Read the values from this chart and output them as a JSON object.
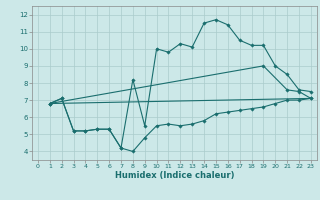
{
  "title": "",
  "xlabel": "Humidex (Indice chaleur)",
  "background_color": "#cce8e8",
  "grid_color": "#aacccc",
  "line_color": "#1a6e6e",
  "xlim": [
    -0.5,
    23.5
  ],
  "ylim": [
    3.5,
    12.5
  ],
  "xticks": [
    0,
    1,
    2,
    3,
    4,
    5,
    6,
    7,
    8,
    9,
    10,
    11,
    12,
    13,
    14,
    15,
    16,
    17,
    18,
    19,
    20,
    21,
    22,
    23
  ],
  "yticks": [
    4,
    5,
    6,
    7,
    8,
    9,
    10,
    11,
    12
  ],
  "line1_x": [
    1,
    2,
    3,
    4,
    5,
    6,
    7,
    8,
    9,
    10,
    11,
    12,
    13,
    14,
    15,
    16,
    17,
    18,
    19,
    20,
    21,
    22,
    23
  ],
  "line1_y": [
    6.8,
    7.1,
    5.2,
    5.2,
    5.3,
    5.3,
    4.2,
    4.0,
    4.8,
    5.5,
    5.6,
    5.5,
    5.6,
    5.8,
    6.2,
    6.3,
    6.4,
    6.5,
    6.6,
    6.8,
    7.0,
    7.0,
    7.1
  ],
  "line2_x": [
    1,
    2,
    3,
    4,
    5,
    6,
    7,
    8,
    9,
    10,
    11,
    12,
    13,
    14,
    15,
    16,
    17,
    18,
    19,
    20,
    21,
    22,
    23
  ],
  "line2_y": [
    6.8,
    7.1,
    5.2,
    5.2,
    5.3,
    5.3,
    4.2,
    8.2,
    5.5,
    10.0,
    9.8,
    10.3,
    10.1,
    11.5,
    11.7,
    11.4,
    10.5,
    10.2,
    10.2,
    9.0,
    8.5,
    7.6,
    7.5
  ],
  "line3_x": [
    1,
    23
  ],
  "line3_y": [
    6.8,
    7.1
  ],
  "line4_x": [
    1,
    19,
    21,
    22,
    23
  ],
  "line4_y": [
    6.8,
    9.0,
    7.6,
    7.5,
    7.1
  ]
}
